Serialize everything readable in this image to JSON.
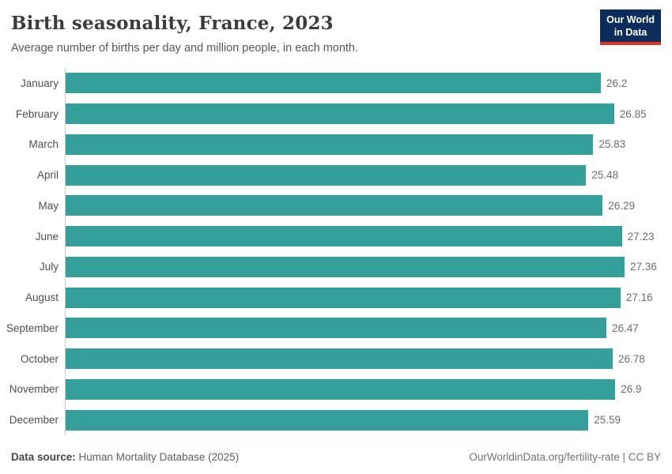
{
  "header": {
    "title": "Birth seasonality, France, 2023",
    "subtitle": "Average number of births per day and million people, in each month.",
    "logo": {
      "line1": "Our World",
      "line2": "in Data"
    }
  },
  "chart_data": {
    "type": "bar",
    "orientation": "horizontal",
    "title": "Birth seasonality, France, 2023",
    "subtitle": "Average number of births per day and million people, in each month.",
    "categories": [
      "January",
      "February",
      "March",
      "April",
      "May",
      "June",
      "July",
      "August",
      "September",
      "October",
      "November",
      "December"
    ],
    "values": [
      26.2,
      26.85,
      25.83,
      25.48,
      26.29,
      27.23,
      27.36,
      27.16,
      26.47,
      26.78,
      26.9,
      25.59
    ],
    "value_labels": [
      "26.2",
      "26.85",
      "25.83",
      "25.48",
      "26.29",
      "27.23",
      "27.36",
      "27.16",
      "26.47",
      "26.78",
      "26.9",
      "25.59"
    ],
    "xlabel": "",
    "ylabel": "",
    "xlim": [
      0,
      27.36
    ],
    "grid": false,
    "legend": false,
    "data_labels": true,
    "bar_color": "#35a09a"
  },
  "colors": {
    "bar": "#35a09a",
    "axis_line": "#cccccc",
    "logo_background": "#0c2d5b",
    "logo_stripe": "#e0311e",
    "title_text": "#3c3c3c"
  },
  "footer": {
    "source_label": "Data source:",
    "source_text": " Human Mortality Database (2025)",
    "attribution": "OurWorldinData.org/fertility-rate | CC BY"
  }
}
